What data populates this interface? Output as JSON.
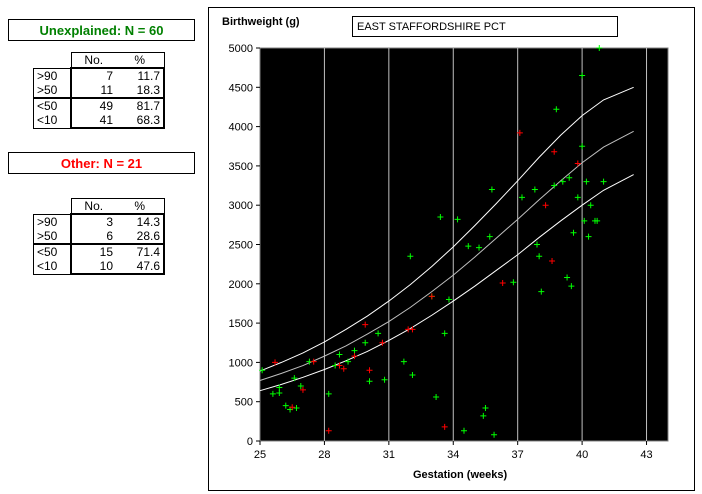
{
  "unexplained": {
    "title": "Unexplained: N = 60",
    "title_color": "#008000",
    "header": {
      "no": "No.",
      "pct": "%"
    },
    "rows": [
      {
        "label": ">90",
        "no": "7",
        "pct": "11.7"
      },
      {
        "label": ">50",
        "no": "11",
        "pct": "18.3"
      },
      {
        "label": "<50",
        "no": "49",
        "pct": "81.7"
      },
      {
        "label": "<10",
        "no": "41",
        "pct": "68.3"
      }
    ]
  },
  "other": {
    "title": "Other: N = 21",
    "title_color": "#ff0000",
    "header": {
      "no": "No.",
      "pct": "%"
    },
    "rows": [
      {
        "label": ">90",
        "no": "3",
        "pct": "14.3"
      },
      {
        "label": ">50",
        "no": "6",
        "pct": "28.6"
      },
      {
        "label": "<50",
        "no": "15",
        "pct": "71.4"
      },
      {
        "label": "<10",
        "no": "10",
        "pct": "47.6"
      }
    ]
  },
  "chart_data": {
    "type": "scatter",
    "title": "EAST STAFFORDSHIRE PCT",
    "xlabel": "Gestation (weeks)",
    "ylabel": "Birthweight (g)",
    "xlim": [
      25,
      44
    ],
    "ylim": [
      0,
      5000
    ],
    "x_ticks": [
      25,
      28,
      31,
      34,
      37,
      40,
      43
    ],
    "y_ticks": [
      0,
      500,
      1000,
      1500,
      2000,
      2500,
      3000,
      3500,
      4000,
      4500,
      5000
    ],
    "grid": "vertical",
    "background": "#000000",
    "centile_lines": [
      {
        "name": "90th centile",
        "color": "#ffffff",
        "x": [
          25,
          26,
          27,
          28,
          29,
          30,
          31,
          32,
          33,
          34,
          35,
          36,
          37,
          38,
          39,
          40,
          41,
          42.4
        ],
        "y": [
          890,
          1000,
          1120,
          1260,
          1420,
          1590,
          1780,
          1990,
          2220,
          2470,
          2740,
          3020,
          3310,
          3610,
          3890,
          4140,
          4340,
          4500
        ]
      },
      {
        "name": "50th centile",
        "color": "#bfbfbf",
        "x": [
          25,
          26,
          27,
          28,
          29,
          30,
          31,
          32,
          33,
          34,
          35,
          36,
          37,
          38,
          39,
          40,
          41,
          42.4
        ],
        "y": [
          770,
          860,
          960,
          1080,
          1210,
          1360,
          1520,
          1700,
          1900,
          2110,
          2340,
          2580,
          2820,
          3070,
          3310,
          3540,
          3740,
          3940
        ]
      },
      {
        "name": "10th centile",
        "color": "#ffffff",
        "x": [
          25,
          26,
          27,
          28,
          29,
          30,
          31,
          32,
          33,
          34,
          35,
          36,
          37,
          38,
          39,
          40,
          41,
          42.4
        ],
        "y": [
          640,
          720,
          810,
          910,
          1020,
          1140,
          1280,
          1430,
          1600,
          1780,
          1970,
          2170,
          2370,
          2590,
          2800,
          3000,
          3190,
          3390
        ]
      }
    ],
    "series": [
      {
        "name": "Unexplained",
        "color": "#00ff00",
        "marker": "plus",
        "points": [
          [
            25.1,
            900
          ],
          [
            25.6,
            600
          ],
          [
            25.9,
            610
          ],
          [
            25.9,
            680
          ],
          [
            26.2,
            450
          ],
          [
            26.4,
            400
          ],
          [
            26.6,
            800
          ],
          [
            26.7,
            420
          ],
          [
            26.9,
            700
          ],
          [
            27.3,
            1010
          ],
          [
            28.2,
            600
          ],
          [
            28.5,
            960
          ],
          [
            28.7,
            1100
          ],
          [
            29.1,
            1010
          ],
          [
            29.4,
            1150
          ],
          [
            29.9,
            1250
          ],
          [
            30.1,
            760
          ],
          [
            30.5,
            1370
          ],
          [
            30.8,
            780
          ],
          [
            31.7,
            1010
          ],
          [
            32.0,
            2350
          ],
          [
            32.1,
            840
          ],
          [
            33.0,
            1840
          ],
          [
            33.2,
            560
          ],
          [
            33.4,
            2850
          ],
          [
            33.6,
            1370
          ],
          [
            33.8,
            1800
          ],
          [
            34.2,
            2820
          ],
          [
            34.5,
            130
          ],
          [
            34.7,
            2480
          ],
          [
            35.2,
            2460
          ],
          [
            35.4,
            320
          ],
          [
            35.5,
            420
          ],
          [
            35.7,
            2600
          ],
          [
            35.8,
            3200
          ],
          [
            35.9,
            80
          ],
          [
            36.8,
            2020
          ],
          [
            37.8,
            3200
          ],
          [
            37.9,
            2500
          ],
          [
            38.0,
            2350
          ],
          [
            38.1,
            1900
          ],
          [
            38.7,
            3250
          ],
          [
            38.8,
            4220
          ],
          [
            39.1,
            3300
          ],
          [
            39.3,
            2080
          ],
          [
            39.4,
            3350
          ],
          [
            39.5,
            1970
          ],
          [
            39.6,
            2650
          ],
          [
            39.8,
            3100
          ],
          [
            40.0,
            4650
          ],
          [
            40.0,
            3750
          ],
          [
            40.1,
            2800
          ],
          [
            40.3,
            2600
          ],
          [
            40.4,
            3000
          ],
          [
            40.6,
            2800
          ],
          [
            40.7,
            2800
          ],
          [
            40.8,
            5000
          ],
          [
            41.0,
            3300
          ],
          [
            40.2,
            3300
          ],
          [
            37.2,
            3100
          ]
        ]
      },
      {
        "name": "Other",
        "color": "#ff0000",
        "marker": "plus",
        "points": [
          [
            25.7,
            1000
          ],
          [
            27.0,
            650
          ],
          [
            27.5,
            1010
          ],
          [
            28.2,
            130
          ],
          [
            28.9,
            920
          ],
          [
            29.9,
            1480
          ],
          [
            30.1,
            900
          ],
          [
            32.1,
            1420
          ],
          [
            33.6,
            180
          ],
          [
            37.1,
            3920
          ],
          [
            38.3,
            3000
          ],
          [
            38.7,
            3680
          ],
          [
            39.8,
            3530
          ],
          [
            38.6,
            2290
          ],
          [
            28.7,
            960
          ],
          [
            29.4,
            1080
          ],
          [
            26.5,
            430
          ],
          [
            33.0,
            1840
          ],
          [
            36.3,
            2010
          ],
          [
            31.9,
            1420
          ],
          [
            30.7,
            1250
          ]
        ]
      }
    ]
  }
}
